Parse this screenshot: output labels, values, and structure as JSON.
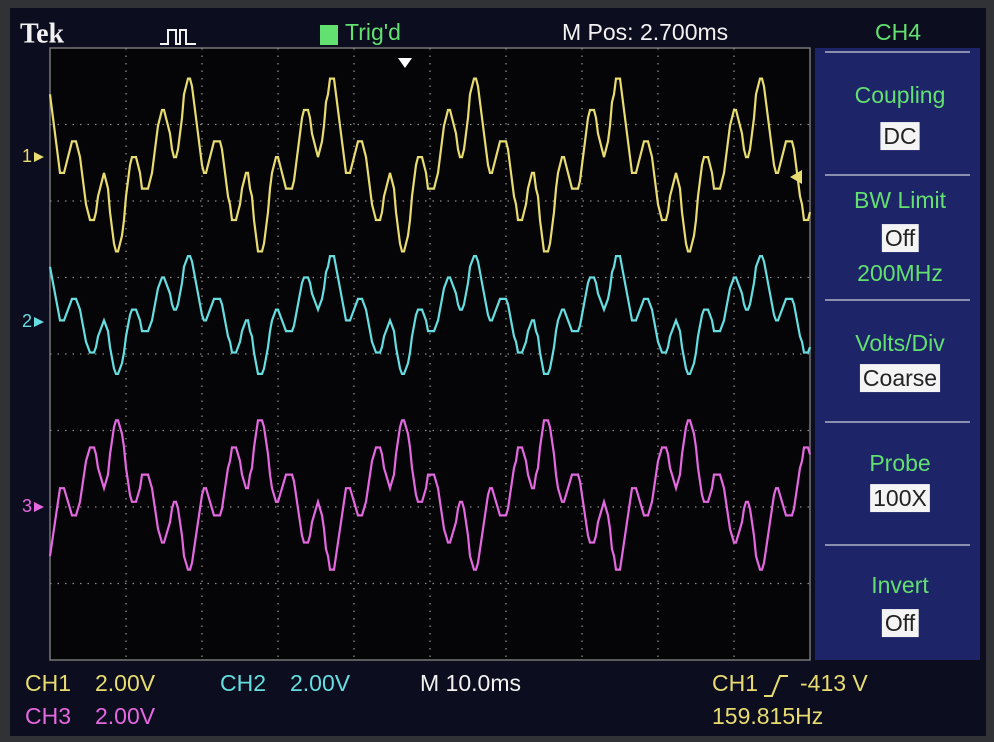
{
  "header": {
    "brand": "Tek",
    "trigger_status": "Trig'd",
    "position": "M Pos: 2.700ms",
    "channel": "CH4"
  },
  "menu": [
    {
      "label": "Coupling",
      "value": "DC"
    },
    {
      "label": "BW Limit",
      "value": "Off",
      "detail": "200MHz"
    },
    {
      "label": "Volts/Div",
      "value": "Coarse"
    },
    {
      "label": "Probe",
      "value": "100X"
    },
    {
      "label": "Invert",
      "value": "Off"
    }
  ],
  "markers": [
    "1",
    "2",
    "3"
  ],
  "status": {
    "ch1": {
      "label": "CH1",
      "scale": "2.00V"
    },
    "ch2": {
      "label": "CH2",
      "scale": "2.00V"
    },
    "ch3": {
      "label": "CH3",
      "scale": "2.00V"
    },
    "timebase": "M 10.0ms",
    "trigger": {
      "source": "CH1",
      "level": "-413 V"
    },
    "frequency": "159.815Hz"
  }
}
